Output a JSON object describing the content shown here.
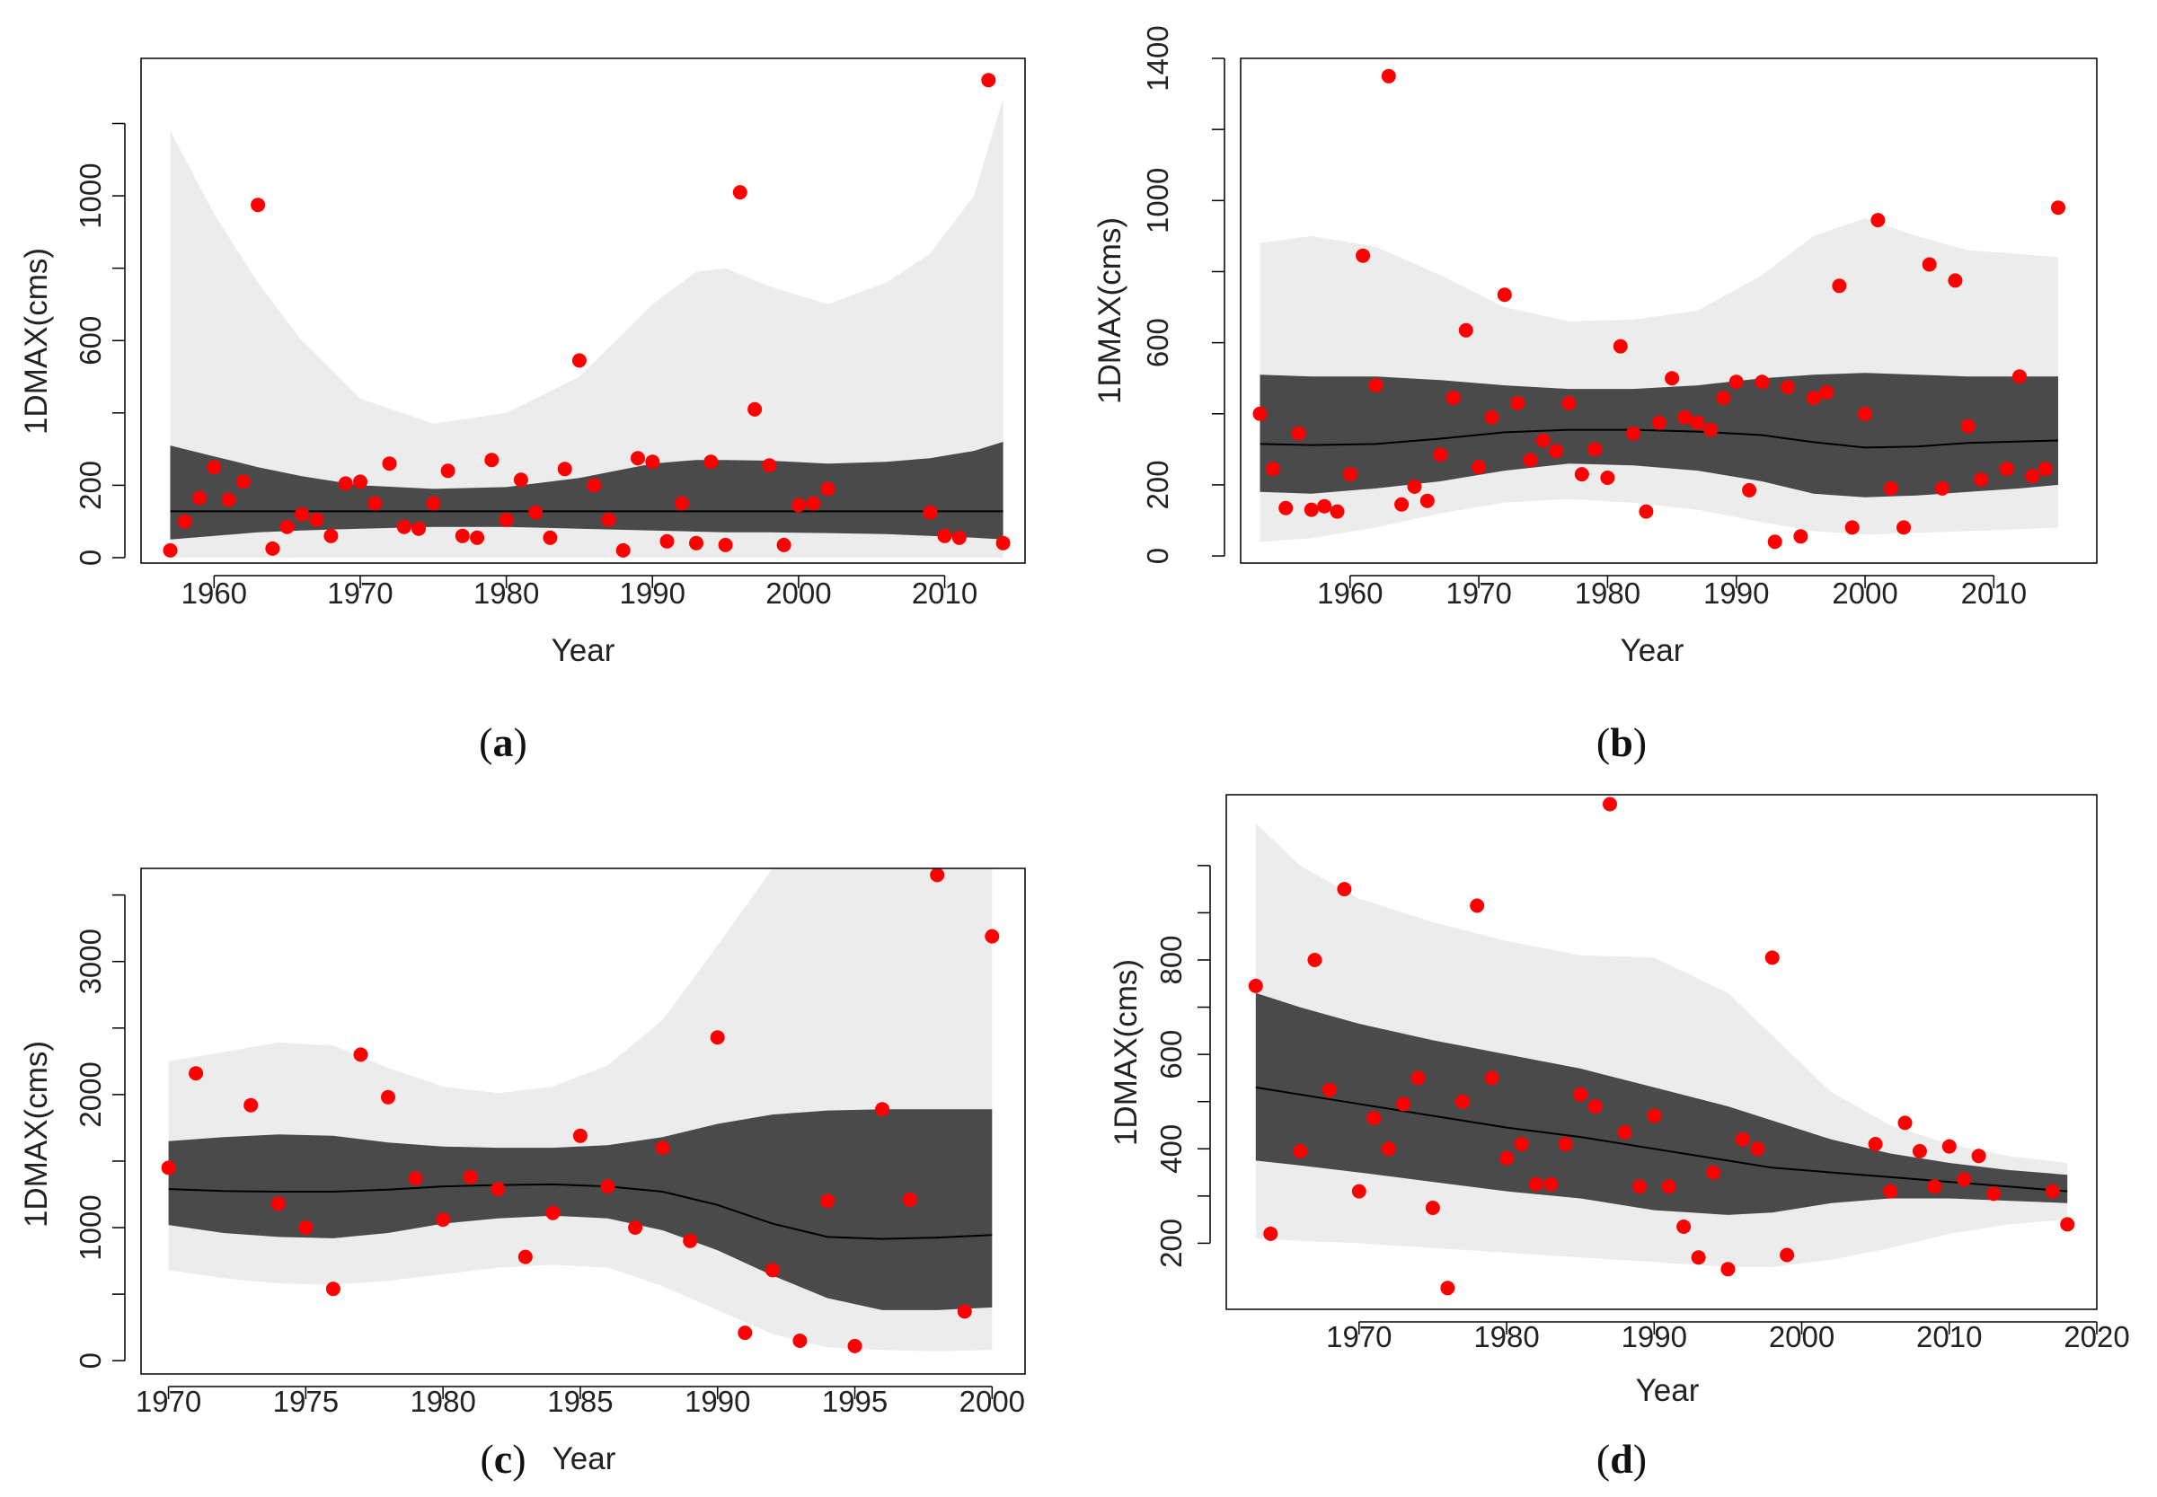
{
  "colors": {
    "outer_band": "#ececec",
    "inner_band": "#4a4a4a",
    "median": "#000000",
    "points": "#ff0000",
    "frame": "#000000"
  },
  "chart_data": [
    {
      "type": "scatter",
      "caption": "a",
      "xlabel": "Year",
      "ylabel": "1DMAX(cms)",
      "xlim": [
        1955,
        2015.5
      ],
      "ylim": [
        -15,
        1380
      ],
      "xticks": [
        1960,
        1970,
        1980,
        1990,
        2000,
        2010
      ],
      "yticks": [
        0,
        200,
        400,
        600,
        800,
        1000,
        1200
      ],
      "ytick_labels": [
        "0",
        "200",
        "",
        "600",
        "",
        "1000",
        ""
      ],
      "band_x": [
        1957,
        1960,
        1963,
        1966,
        1970,
        1975,
        1980,
        1985,
        1990,
        1993,
        1995,
        1998,
        2002,
        2006,
        2009,
        2012,
        2014
      ],
      "outer_upper": [
        1180,
        950,
        760,
        600,
        440,
        370,
        400,
        500,
        700,
        790,
        800,
        750,
        700,
        760,
        840,
        1000,
        1270
      ],
      "outer_lower": [
        0,
        0,
        0,
        0,
        0,
        0,
        0,
        0,
        0,
        0,
        0,
        0,
        0,
        0,
        0,
        0,
        0
      ],
      "inner_upper": [
        310,
        280,
        250,
        225,
        200,
        190,
        195,
        220,
        260,
        270,
        270,
        268,
        260,
        265,
        275,
        295,
        320
      ],
      "inner_lower": [
        50,
        60,
        70,
        75,
        80,
        85,
        85,
        80,
        75,
        72,
        70,
        70,
        68,
        65,
        60,
        55,
        50
      ],
      "median": [
        128,
        128,
        128,
        128,
        128,
        128,
        128,
        128,
        128,
        128,
        128,
        128,
        128,
        128,
        128,
        128,
        128
      ],
      "points": [
        [
          1957,
          20
        ],
        [
          1958,
          100
        ],
        [
          1959,
          165
        ],
        [
          1960,
          250
        ],
        [
          1961,
          160
        ],
        [
          1962,
          210
        ],
        [
          1963,
          975
        ],
        [
          1964,
          25
        ],
        [
          1965,
          85
        ],
        [
          1966,
          120
        ],
        [
          1967,
          105
        ],
        [
          1968,
          60
        ],
        [
          1969,
          205
        ],
        [
          1970,
          210
        ],
        [
          1971,
          150
        ],
        [
          1972,
          260
        ],
        [
          1973,
          85
        ],
        [
          1974,
          80
        ],
        [
          1975,
          150
        ],
        [
          1976,
          240
        ],
        [
          1977,
          60
        ],
        [
          1978,
          55
        ],
        [
          1979,
          270
        ],
        [
          1980,
          105
        ],
        [
          1981,
          215
        ],
        [
          1982,
          125
        ],
        [
          1983,
          55
        ],
        [
          1984,
          245
        ],
        [
          1985,
          545
        ],
        [
          1986,
          200
        ],
        [
          1987,
          105
        ],
        [
          1988,
          20
        ],
        [
          1989,
          275
        ],
        [
          1990,
          265
        ],
        [
          1991,
          45
        ],
        [
          1992,
          150
        ],
        [
          1993,
          40
        ],
        [
          1994,
          265
        ],
        [
          1995,
          35
        ],
        [
          1996,
          1010
        ],
        [
          1997,
          410
        ],
        [
          1998,
          255
        ],
        [
          1999,
          35
        ],
        [
          2000,
          145
        ],
        [
          2001,
          150
        ],
        [
          2002,
          190
        ],
        [
          2009,
          125
        ],
        [
          2010,
          60
        ],
        [
          2011,
          55
        ],
        [
          2013,
          1320
        ],
        [
          2014,
          40
        ]
      ]
    },
    {
      "type": "scatter",
      "caption": "b",
      "xlabel": "Year",
      "ylabel": "1DMAX(cms)",
      "xlim": [
        1951.5,
        2018
      ],
      "ylim": [
        -20,
        1400
      ],
      "xticks": [
        1960,
        1970,
        1980,
        1990,
        2000,
        2010
      ],
      "yticks": [
        0,
        200,
        400,
        600,
        800,
        1000,
        1200,
        1400
      ],
      "ytick_labels": [
        "0",
        "200",
        "",
        "600",
        "",
        "1000",
        "",
        "1400"
      ],
      "band_x": [
        1953,
        1957,
        1962,
        1967,
        1972,
        1977,
        1982,
        1987,
        1992,
        1996,
        2000,
        2004,
        2008,
        2012,
        2015
      ],
      "outer_upper": [
        880,
        900,
        870,
        790,
        700,
        660,
        665,
        690,
        790,
        900,
        950,
        900,
        860,
        850,
        840
      ],
      "outer_lower": [
        40,
        50,
        80,
        120,
        150,
        160,
        150,
        130,
        95,
        70,
        60,
        65,
        70,
        75,
        80
      ],
      "inner_upper": [
        510,
        505,
        505,
        495,
        480,
        470,
        470,
        480,
        500,
        510,
        515,
        510,
        505,
        505,
        505
      ],
      "inner_lower": [
        180,
        175,
        190,
        210,
        240,
        260,
        255,
        240,
        210,
        175,
        165,
        170,
        180,
        190,
        200
      ],
      "median": [
        315,
        312,
        315,
        330,
        348,
        355,
        355,
        350,
        340,
        320,
        305,
        308,
        318,
        322,
        325
      ],
      "points": [
        [
          1953,
          400
        ],
        [
          1954,
          245
        ],
        [
          1955,
          135
        ],
        [
          1956,
          345
        ],
        [
          1957,
          130
        ],
        [
          1958,
          140
        ],
        [
          1959,
          125
        ],
        [
          1960,
          230
        ],
        [
          1961,
          845
        ],
        [
          1962,
          480
        ],
        [
          1963,
          1350
        ],
        [
          1964,
          145
        ],
        [
          1965,
          195
        ],
        [
          1966,
          155
        ],
        [
          1967,
          285
        ],
        [
          1968,
          445
        ],
        [
          1969,
          635
        ],
        [
          1970,
          250
        ],
        [
          1971,
          390
        ],
        [
          1972,
          735
        ],
        [
          1973,
          430
        ],
        [
          1974,
          270
        ],
        [
          1975,
          325
        ],
        [
          1976,
          295
        ],
        [
          1977,
          430
        ],
        [
          1978,
          230
        ],
        [
          1979,
          300
        ],
        [
          1980,
          220
        ],
        [
          1981,
          590
        ],
        [
          1982,
          345
        ],
        [
          1983,
          125
        ],
        [
          1984,
          375
        ],
        [
          1985,
          500
        ],
        [
          1986,
          390
        ],
        [
          1987,
          375
        ],
        [
          1988,
          355
        ],
        [
          1989,
          445
        ],
        [
          1990,
          490
        ],
        [
          1991,
          185
        ],
        [
          1992,
          490
        ],
        [
          1993,
          40
        ],
        [
          1994,
          475
        ],
        [
          1995,
          55
        ],
        [
          1996,
          445
        ],
        [
          1997,
          460
        ],
        [
          1998,
          760
        ],
        [
          1999,
          80
        ],
        [
          2000,
          400
        ],
        [
          2001,
          945
        ],
        [
          2002,
          190
        ],
        [
          2003,
          80
        ],
        [
          2005,
          820
        ],
        [
          2006,
          190
        ],
        [
          2007,
          775
        ],
        [
          2008,
          365
        ],
        [
          2009,
          215
        ],
        [
          2011,
          245
        ],
        [
          2012,
          505
        ],
        [
          2013,
          225
        ],
        [
          2014,
          245
        ],
        [
          2015,
          980
        ]
      ]
    },
    {
      "type": "scatter",
      "caption": "c",
      "xlabel": "Year",
      "ylabel": "1DMAX(cms)",
      "xlim": [
        1969,
        2001.2
      ],
      "ylim": [
        -100,
        3700
      ],
      "xticks": [
        1970,
        1975,
        1980,
        1985,
        1990,
        1995,
        2000
      ],
      "yticks": [
        0,
        500,
        1000,
        1500,
        2000,
        2500,
        3000,
        3500
      ],
      "ytick_labels": [
        "0",
        "",
        "1000",
        "",
        "2000",
        "",
        "3000",
        ""
      ],
      "band_x": [
        1970,
        1972,
        1974,
        1976,
        1978,
        1980,
        1982,
        1984,
        1986,
        1988,
        1990,
        1992,
        1994,
        1996,
        1998,
        2000
      ],
      "outer_upper": [
        2250,
        2320,
        2390,
        2370,
        2200,
        2060,
        2010,
        2060,
        2220,
        2560,
        3120,
        3700,
        3700,
        3700,
        3700,
        3700
      ],
      "outer_lower": [
        680,
        620,
        580,
        570,
        600,
        650,
        700,
        720,
        700,
        560,
        380,
        200,
        100,
        80,
        70,
        80
      ],
      "inner_upper": [
        1650,
        1680,
        1700,
        1690,
        1640,
        1610,
        1600,
        1600,
        1620,
        1680,
        1780,
        1850,
        1880,
        1890,
        1890,
        1890
      ],
      "inner_lower": [
        1020,
        960,
        930,
        920,
        960,
        1030,
        1070,
        1090,
        1070,
        980,
        830,
        640,
        470,
        380,
        380,
        400
      ],
      "median": [
        1290,
        1275,
        1270,
        1270,
        1285,
        1310,
        1320,
        1325,
        1310,
        1270,
        1170,
        1030,
        930,
        915,
        925,
        945
      ],
      "points": [
        [
          1970,
          1450
        ],
        [
          1971,
          2160
        ],
        [
          1973,
          1920
        ],
        [
          1974,
          1180
        ],
        [
          1975,
          1000
        ],
        [
          1976,
          540
        ],
        [
          1977,
          2300
        ],
        [
          1978,
          1980
        ],
        [
          1979,
          1370
        ],
        [
          1980,
          1060
        ],
        [
          1981,
          1380
        ],
        [
          1982,
          1290
        ],
        [
          1983,
          780
        ],
        [
          1984,
          1110
        ],
        [
          1985,
          1690
        ],
        [
          1986,
          1310
        ],
        [
          1987,
          1000
        ],
        [
          1988,
          1600
        ],
        [
          1989,
          900
        ],
        [
          1990,
          2430
        ],
        [
          1991,
          210
        ],
        [
          1992,
          680
        ],
        [
          1993,
          150
        ],
        [
          1994,
          1200
        ],
        [
          1995,
          110
        ],
        [
          1996,
          1890
        ],
        [
          1997,
          1210
        ],
        [
          1998,
          3650
        ],
        [
          1999,
          370
        ],
        [
          2000,
          3190
        ]
      ]
    },
    {
      "type": "scatter",
      "caption": "d",
      "xlabel": "Year",
      "ylabel": "1DMAX(cms)",
      "xlim": [
        1961,
        2020
      ],
      "ylim": [
        60,
        1150
      ],
      "xticks": [
        1970,
        1980,
        1990,
        2000,
        2010,
        2020
      ],
      "yticks": [
        200,
        300,
        400,
        500,
        600,
        700,
        800,
        900,
        1000
      ],
      "ytick_labels": [
        "200",
        "",
        "400",
        "",
        "600",
        "",
        "800",
        "",
        ""
      ],
      "band_x": [
        1963,
        1966,
        1970,
        1975,
        1980,
        1985,
        1990,
        1995,
        1998,
        2002,
        2006,
        2010,
        2014,
        2018
      ],
      "outer_upper": [
        1090,
        1000,
        930,
        880,
        840,
        810,
        805,
        730,
        640,
        520,
        450,
        410,
        385,
        370
      ],
      "outer_lower": [
        210,
        205,
        200,
        190,
        180,
        170,
        160,
        150,
        150,
        165,
        190,
        220,
        240,
        250
      ],
      "inner_upper": [
        730,
        700,
        665,
        630,
        600,
        570,
        530,
        490,
        460,
        420,
        390,
        370,
        355,
        345
      ],
      "inner_lower": [
        375,
        365,
        350,
        330,
        310,
        295,
        270,
        260,
        265,
        285,
        295,
        295,
        290,
        285
      ],
      "median": [
        530,
        515,
        495,
        470,
        445,
        425,
        400,
        375,
        360,
        350,
        340,
        330,
        320,
        310
      ],
      "points": [
        [
          1963,
          745
        ],
        [
          1964,
          220
        ],
        [
          1966,
          395
        ],
        [
          1967,
          800
        ],
        [
          1968,
          525
        ],
        [
          1969,
          950
        ],
        [
          1970,
          310
        ],
        [
          1971,
          465
        ],
        [
          1972,
          400
        ],
        [
          1973,
          495
        ],
        [
          1974,
          550
        ],
        [
          1975,
          275
        ],
        [
          1976,
          105
        ],
        [
          1977,
          500
        ],
        [
          1978,
          915
        ],
        [
          1979,
          550
        ],
        [
          1980,
          380
        ],
        [
          1981,
          410
        ],
        [
          1982,
          325
        ],
        [
          1983,
          325
        ],
        [
          1984,
          410
        ],
        [
          1985,
          515
        ],
        [
          1986,
          490
        ],
        [
          1987,
          1130
        ],
        [
          1988,
          435
        ],
        [
          1989,
          320
        ],
        [
          1990,
          470
        ],
        [
          1991,
          320
        ],
        [
          1992,
          235
        ],
        [
          1993,
          170
        ],
        [
          1994,
          350
        ],
        [
          1995,
          145
        ],
        [
          1996,
          420
        ],
        [
          1997,
          400
        ],
        [
          1998,
          805
        ],
        [
          1999,
          175
        ],
        [
          2005,
          410
        ],
        [
          2006,
          310
        ],
        [
          2007,
          455
        ],
        [
          2008,
          395
        ],
        [
          2009,
          320
        ],
        [
          2010,
          405
        ],
        [
          2011,
          335
        ],
        [
          2012,
          385
        ],
        [
          2013,
          305
        ],
        [
          2017,
          310
        ],
        [
          2018,
          240
        ]
      ]
    }
  ]
}
